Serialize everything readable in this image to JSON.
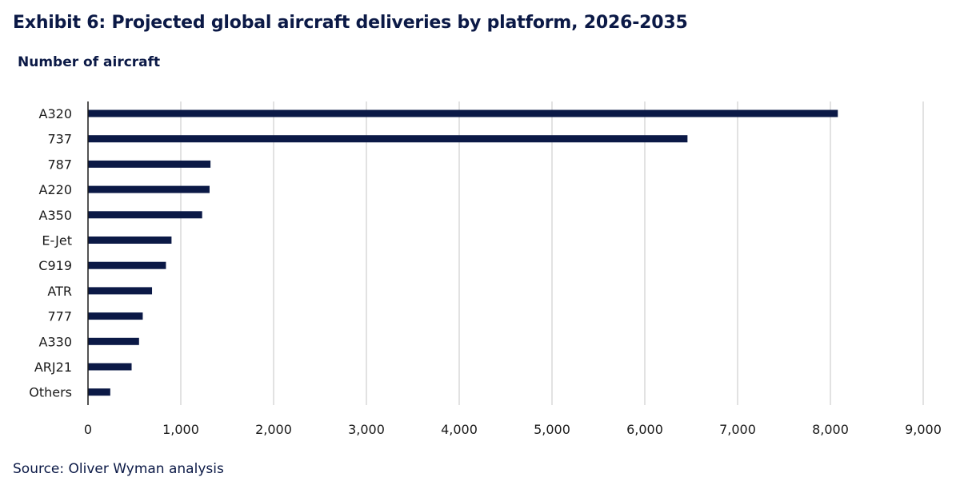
{
  "title": "Exhibit 6: Projected global aircraft deliveries by platform, 2026-2035",
  "subtitle": "Number of aircraft",
  "source": "Source: Oliver Wyman analysis",
  "colors": {
    "bar": "#0b1946",
    "grid": "#d9d9d9",
    "axis": "#1a1a1a",
    "text": "#0b1946"
  },
  "chart_data": {
    "type": "bar",
    "orientation": "horizontal",
    "categories": [
      "A320",
      "737",
      "787",
      "A220",
      "A350",
      "E-Jet",
      "C919",
      "ATR",
      "777",
      "A330",
      "ARJ21",
      "Others"
    ],
    "values": [
      8080,
      6460,
      1320,
      1310,
      1230,
      900,
      840,
      690,
      590,
      550,
      470,
      240
    ],
    "xlim": [
      0,
      9000
    ],
    "x_ticks": [
      0,
      1000,
      2000,
      3000,
      4000,
      5000,
      6000,
      7000,
      8000,
      9000
    ],
    "x_tick_labels": [
      "0",
      "1,000",
      "2,000",
      "3,000",
      "4,000",
      "5,000",
      "6,000",
      "7,000",
      "8,000",
      "9,000"
    ],
    "grid": "vertical",
    "legend": "none"
  }
}
